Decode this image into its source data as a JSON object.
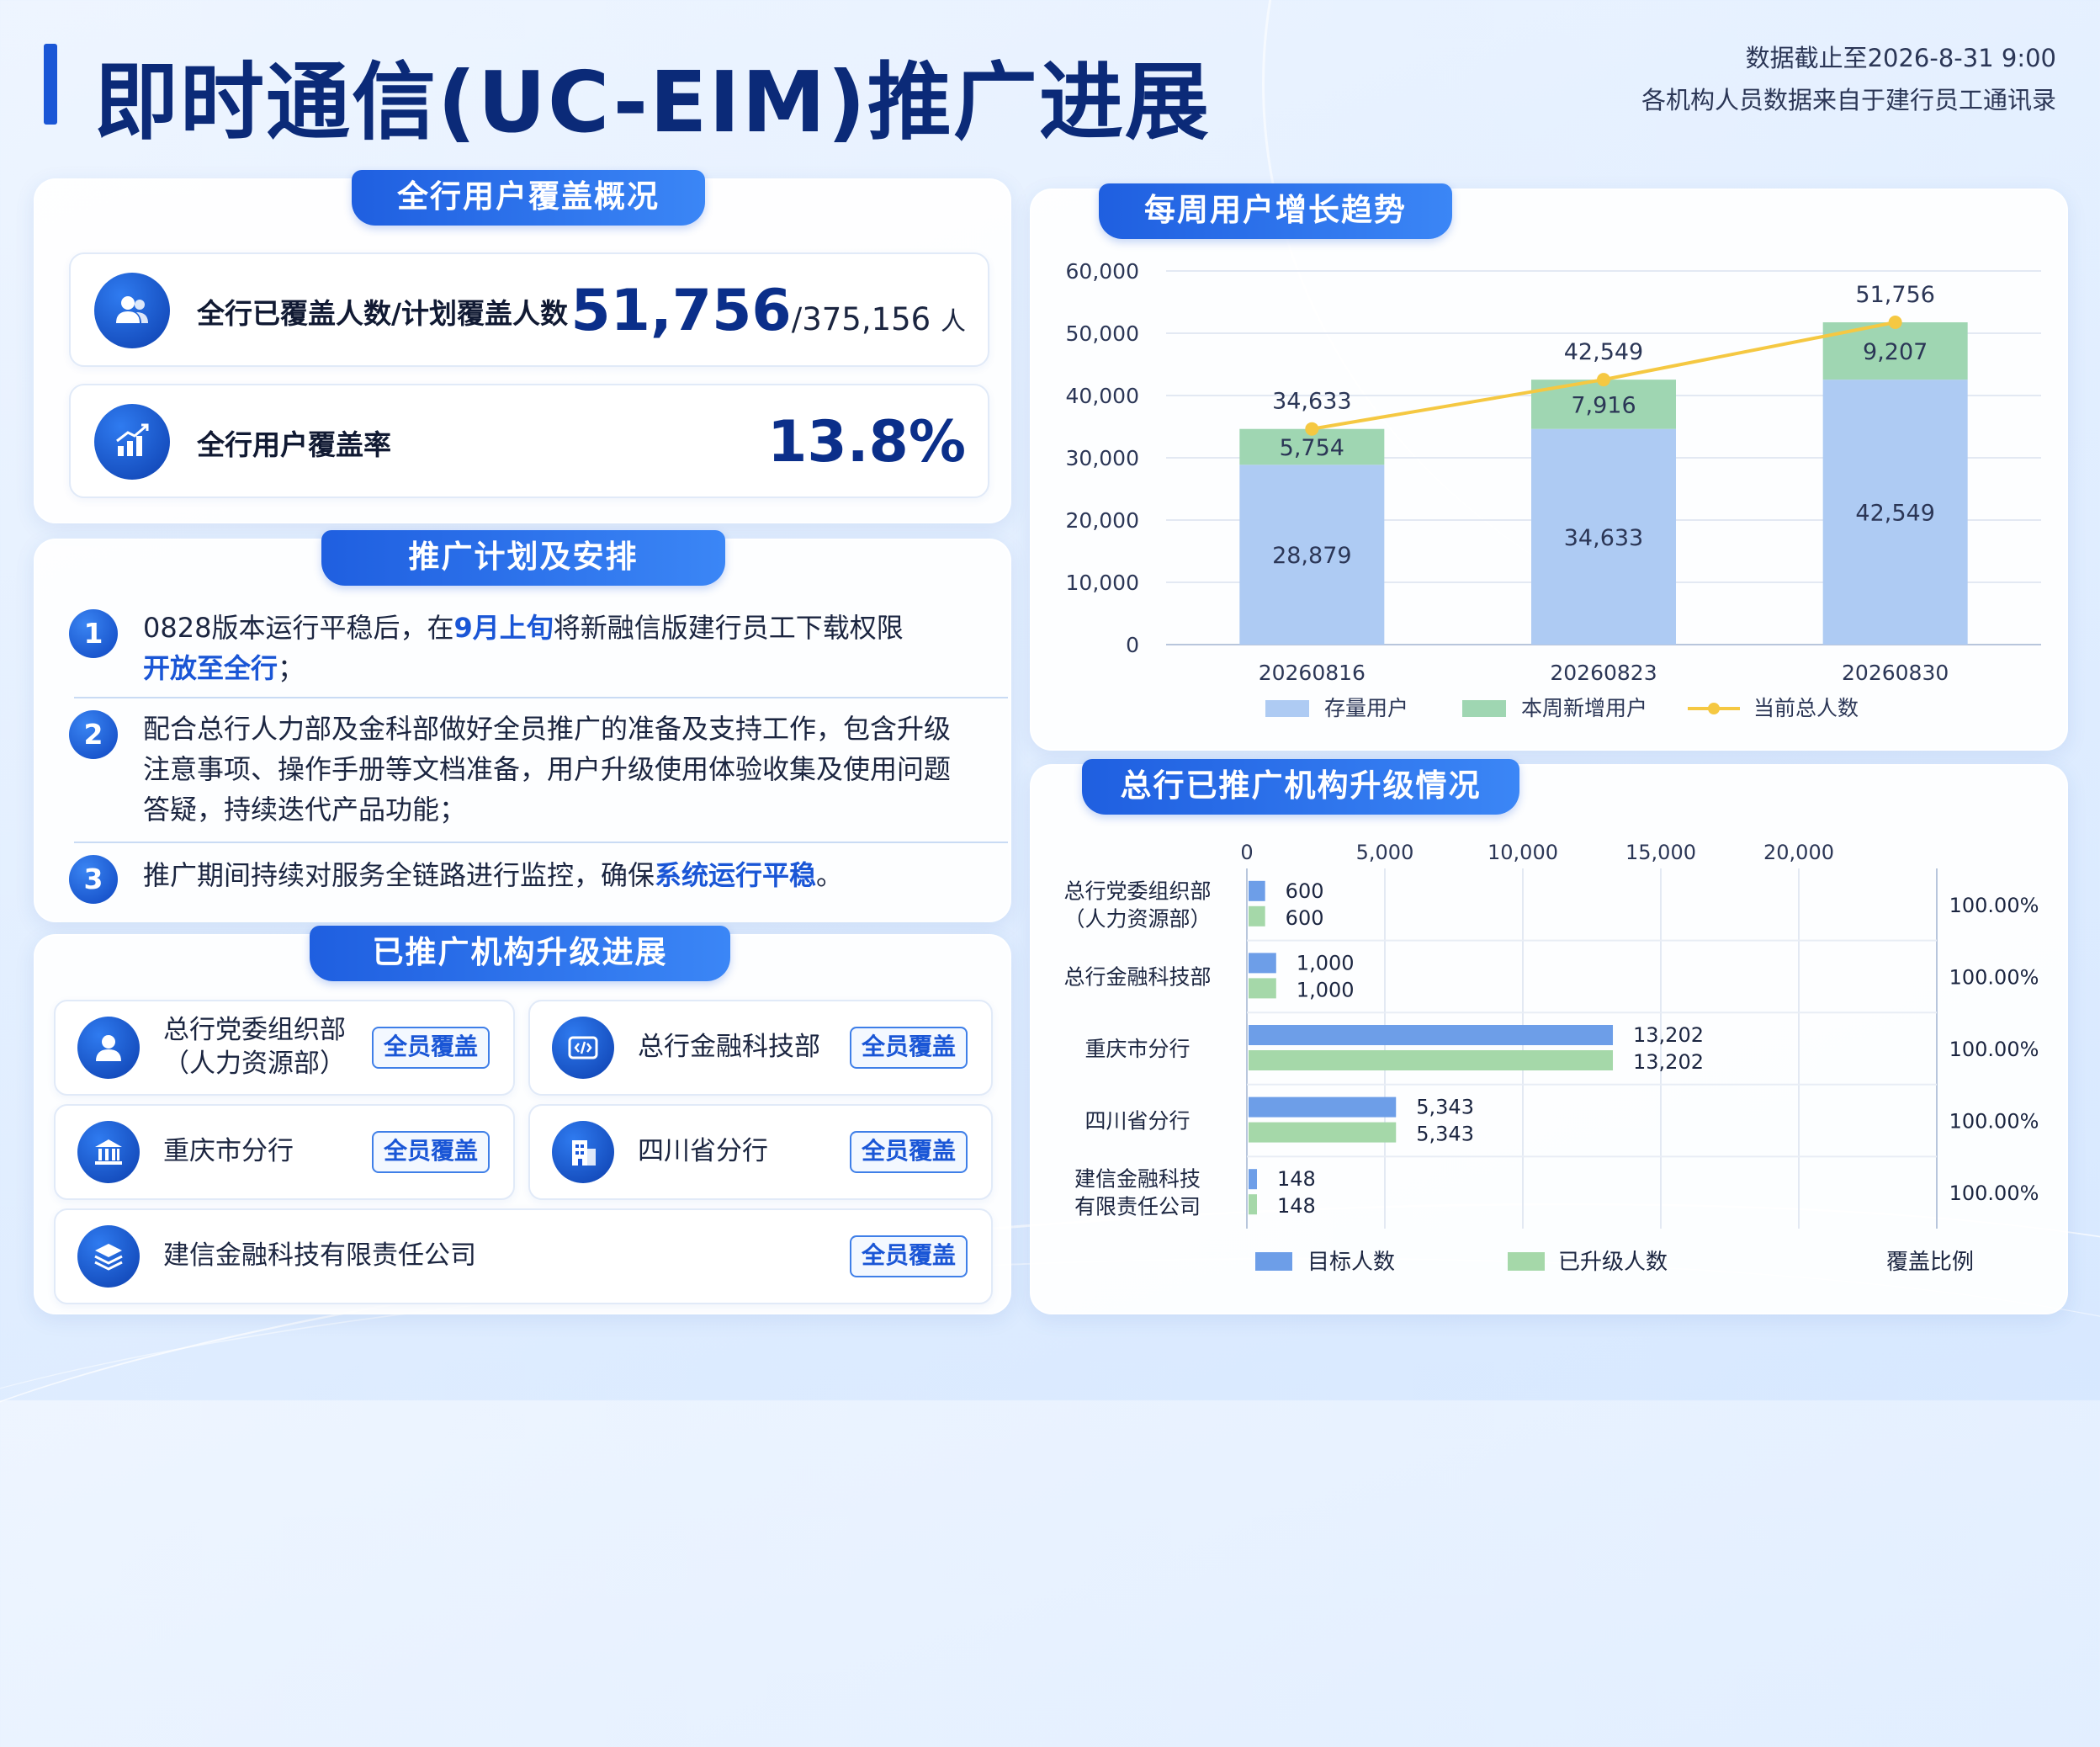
{
  "header": {
    "title": "即时通信(UC-EIM)推广进展",
    "cutoff": "数据截止至2026-8-31 9:00",
    "source": "各机构人员数据来自于建行员工通讯录"
  },
  "coverage": {
    "tab": "全行用户覆盖概况",
    "covered_label": "全行已覆盖人数/计划覆盖人数",
    "covered_value": "51,756",
    "planned_value": "375,156",
    "unit": "人",
    "rate_label": "全行用户覆盖率",
    "rate_value": "13.8%"
  },
  "plan": {
    "tab": "推广计划及安排",
    "items": [
      {
        "num": "1",
        "pre": "0828版本运行平稳后，在",
        "hl1": "9月上旬",
        "mid": "将新融信版建行员工下载权限",
        "hl2": "开放至全行",
        "post": "；"
      },
      {
        "num": "2",
        "text": "配合总行人力部及金科部做好全员推广的准备及支持工作，包含升级注意事项、操作手册等文档准备，用户升级使用体验收集及使用问题答疑，持续迭代产品功能；"
      },
      {
        "num": "3",
        "pre": "推广期间持续对服务全链路进行监控，确保",
        "hl1": "系统运行平稳",
        "post": "。"
      }
    ]
  },
  "orgs": {
    "tab": "已推广机构升级进展",
    "badge": "全员覆盖",
    "items": [
      {
        "name_line1": "总行党委组织部",
        "name_line2": "（人力资源部）",
        "icon": "user-icon"
      },
      {
        "name_line1": "总行金融科技部",
        "name_line2": "",
        "icon": "code-icon"
      },
      {
        "name_line1": "重庆市分行",
        "name_line2": "",
        "icon": "bank-icon"
      },
      {
        "name_line1": "四川省分行",
        "name_line2": "",
        "icon": "building-icon"
      },
      {
        "name_line1": "建信金融科技有限责任公司",
        "name_line2": "",
        "icon": "layers-icon"
      }
    ]
  },
  "weekly": {
    "tab": "每周用户增长趋势"
  },
  "upgrade": {
    "tab": "总行已推广机构升级情况"
  },
  "colors": {
    "accent": "#1a56d6",
    "stock_bar": "#aecbf3",
    "new_bar": "#9fd6b2",
    "total_line": "#f5c842",
    "target_bar": "#6d9ee8",
    "upgraded_bar": "#a5d8a9"
  },
  "chart_data": [
    {
      "type": "bar",
      "stacked": true,
      "categories": [
        "20260816",
        "20260823",
        "20260830"
      ],
      "series": [
        {
          "name": "存量用户",
          "values": [
            28879,
            34633,
            42549
          ]
        },
        {
          "name": "本周新增用户",
          "values": [
            5754,
            7916,
            9207
          ]
        }
      ],
      "line_series": {
        "name": "当前总人数",
        "values": [
          34633,
          42549,
          51756
        ]
      },
      "value_labels": {
        "stock": [
          "28,879",
          "34,633",
          "42,549"
        ],
        "new": [
          "5,754",
          "7,916",
          "9,207"
        ],
        "total": [
          "34,633",
          "42,549",
          "51,756"
        ]
      },
      "yticks": [
        "60,000",
        "50,000",
        "40,000",
        "30,000",
        "20,000",
        "10,000",
        "0"
      ],
      "ylim": [
        0,
        60000
      ],
      "grid": true,
      "legend": "bottom"
    },
    {
      "type": "bar",
      "orientation": "horizontal",
      "categories": [
        [
          "总行党委组织部",
          "（人力资源部）"
        ],
        [
          "总行金融科技部"
        ],
        [
          "重庆市分行"
        ],
        [
          "四川省分行"
        ],
        [
          "建信金融科技",
          "有限责任公司"
        ]
      ],
      "series": [
        {
          "name": "目标人数",
          "values": [
            600,
            1000,
            13202,
            5343,
            148
          ]
        },
        {
          "name": "已升级人数",
          "values": [
            600,
            1000,
            13202,
            5343,
            148
          ]
        }
      ],
      "value_labels": [
        [
          "600",
          "1,000",
          "13,202",
          "5,343",
          "148"
        ],
        [
          "600",
          "1,000",
          "13,202",
          "5,343",
          "148"
        ]
      ],
      "ratio_name": "覆盖比例",
      "ratios": [
        "100.00%",
        "100.00%",
        "100.00%",
        "100.00%",
        "100.00%"
      ],
      "xticks": [
        "0",
        "5,000",
        "10,000",
        "15,000",
        "20,000"
      ],
      "xtick_values": [
        0,
        5000,
        10000,
        15000,
        20000
      ],
      "xlim": [
        0,
        25000
      ],
      "grid": true,
      "legend": "bottom"
    }
  ]
}
